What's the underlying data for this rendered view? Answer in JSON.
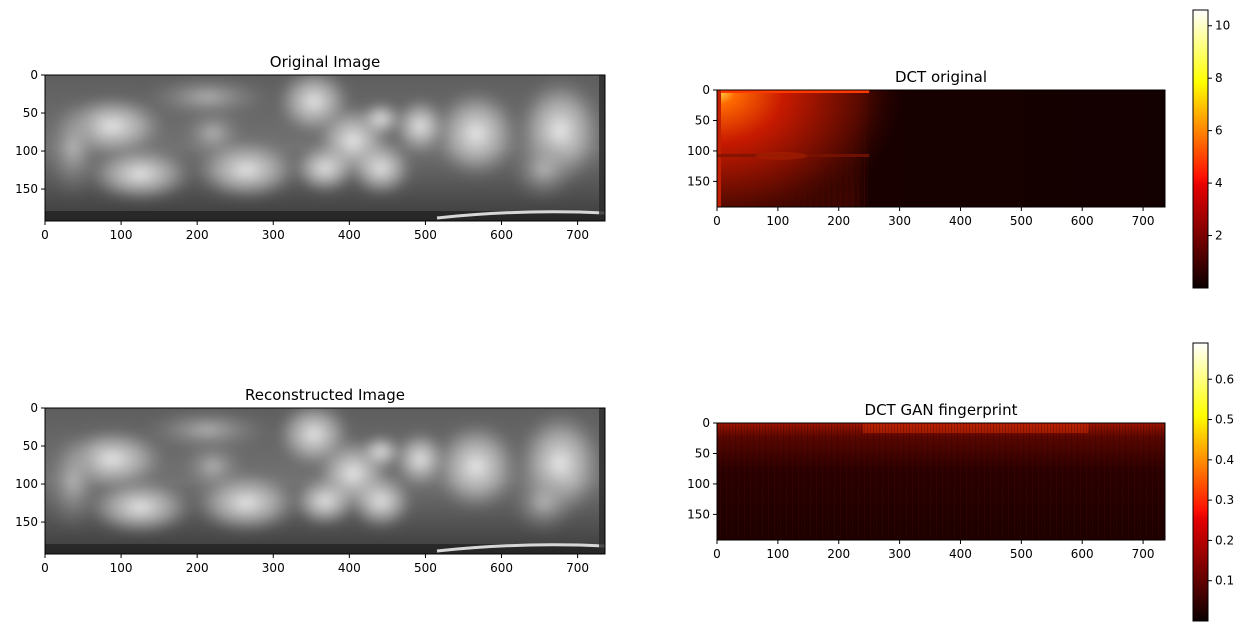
{
  "figure": {
    "panels": [
      {
        "title": "Original Image"
      },
      {
        "title": "DCT original"
      },
      {
        "title": "Reconstructed Image"
      },
      {
        "title": "DCT GAN fingerprint"
      }
    ]
  },
  "chart_data": [
    {
      "type": "heatmap",
      "title": "Original Image",
      "colormap": "gray",
      "image_width": 736,
      "image_height": 192,
      "xlim": [
        0,
        736
      ],
      "ylim": [
        192,
        0
      ],
      "xticks": [
        0,
        100,
        200,
        300,
        400,
        500,
        600,
        700
      ],
      "yticks": [
        0,
        50,
        100,
        150
      ],
      "colorbar": false
    },
    {
      "type": "heatmap",
      "title": "DCT original",
      "colormap": "hot",
      "image_width": 736,
      "image_height": 192,
      "xlim": [
        0,
        736
      ],
      "ylim": [
        192,
        0
      ],
      "xticks": [
        0,
        100,
        200,
        300,
        400,
        500,
        600,
        700
      ],
      "yticks": [
        0,
        50,
        100,
        150
      ],
      "colorbar": true,
      "color_range": [
        0,
        10.6
      ],
      "colorbar_ticks": [
        2,
        4,
        6,
        8,
        10
      ]
    },
    {
      "type": "heatmap",
      "title": "Reconstructed Image",
      "colormap": "gray",
      "image_width": 736,
      "image_height": 192,
      "xlim": [
        0,
        736
      ],
      "ylim": [
        192,
        0
      ],
      "xticks": [
        0,
        100,
        200,
        300,
        400,
        500,
        600,
        700
      ],
      "yticks": [
        0,
        50,
        100,
        150
      ],
      "colorbar": false
    },
    {
      "type": "heatmap",
      "title": "DCT GAN fingerprint",
      "colormap": "hot",
      "image_width": 736,
      "image_height": 192,
      "xlim": [
        0,
        736
      ],
      "ylim": [
        192,
        0
      ],
      "xticks": [
        0,
        100,
        200,
        300,
        400,
        500,
        600,
        700
      ],
      "yticks": [
        0,
        50,
        100,
        150
      ],
      "colorbar": true,
      "color_range": [
        0,
        0.69
      ],
      "colorbar_ticks": [
        0.1,
        0.2,
        0.3,
        0.4,
        0.5,
        0.6
      ]
    }
  ]
}
